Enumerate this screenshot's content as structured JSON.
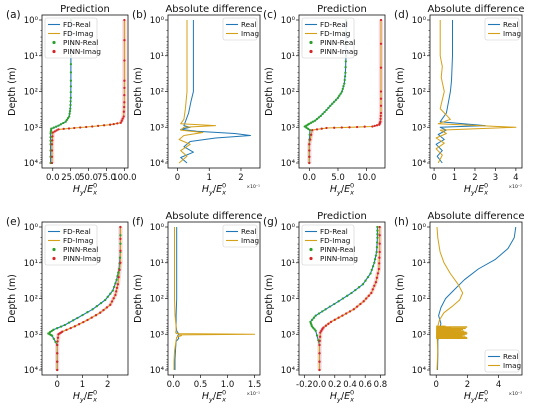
{
  "figure": {
    "ylabel": "Depth (m)",
    "xlabel": "H_y/E_x^0",
    "colors": {
      "real": "#1f77b4",
      "imag": "#d4a017",
      "pinn_real": "#2ca02c",
      "pinn_imag": "#d62728",
      "band": "#f4b6c8"
    }
  },
  "chart_data": [
    {
      "panel": "(a)",
      "type": "line",
      "title": "Prediction",
      "xticks": [
        "0.0",
        "25.0",
        "50.0",
        "75.0",
        "100.0"
      ],
      "xlim": [
        -15,
        105
      ],
      "y_scale": "log",
      "ylim": [
        1,
        10000
      ],
      "y_inverted": true,
      "legend": [
        "FD-Real",
        "FD-Imag",
        "PINN-Real",
        "PINN-Imag"
      ],
      "legend_position": "top-left",
      "series": [
        {
          "name": "FD-Real",
          "style": "line",
          "x": [
            25.3,
            25.3,
            25.3,
            25.2,
            24.5,
            23,
            18,
            8,
            -2,
            -3,
            -3,
            -3
          ],
          "y": [
            1,
            10,
            50,
            150,
            300,
            500,
            700,
            900,
            1100,
            1500,
            3000,
            10000
          ]
        },
        {
          "name": "FD-Imag",
          "style": "line",
          "x": [
            100,
            100,
            99.8,
            99,
            95,
            80,
            55,
            30,
            8,
            0,
            -1,
            -1
          ],
          "y": [
            1,
            50,
            200,
            500,
            750,
            850,
            950,
            1050,
            1150,
            1400,
            3000,
            10000
          ]
        },
        {
          "name": "PINN-Real",
          "style": "dots",
          "x": [
            25.3,
            25.3,
            25.3,
            25.2,
            24.5,
            23,
            18,
            8,
            -2,
            -3,
            -3,
            -3
          ],
          "y": [
            1,
            10,
            50,
            150,
            300,
            500,
            700,
            900,
            1100,
            1500,
            3000,
            10000
          ]
        },
        {
          "name": "PINN-Imag",
          "style": "dots",
          "x": [
            100,
            100,
            99.8,
            99,
            95,
            80,
            55,
            30,
            8,
            0,
            -1,
            -1
          ],
          "y": [
            1,
            50,
            200,
            500,
            750,
            850,
            950,
            1050,
            1150,
            1400,
            3000,
            10000
          ]
        }
      ]
    },
    {
      "panel": "(b)",
      "type": "line",
      "title": "Absolute difference",
      "xticks": [
        "0",
        "1",
        "2"
      ],
      "xlim": [
        -0.3,
        2.6
      ],
      "x_multiplier": "×10⁻¹",
      "y_scale": "log",
      "ylim": [
        1,
        10000
      ],
      "y_inverted": true,
      "legend": [
        "Real",
        "Imag"
      ],
      "legend_position": "top-right",
      "series": [
        {
          "name": "Real",
          "style": "line",
          "x": [
            0.5,
            0.5,
            0.42,
            0.35,
            0.25,
            0.2,
            0.4,
            0.1,
            0.6,
            1.8,
            2.3,
            1.2,
            0.4,
            0.2,
            0.5,
            0.1,
            0.3
          ],
          "y": [
            1,
            100,
            200,
            400,
            700,
            900,
            1000,
            1150,
            1300,
            1500,
            1700,
            2000,
            2500,
            3500,
            5000,
            7000,
            10000
          ]
        },
        {
          "name": "Imag",
          "style": "line",
          "x": [
            0.3,
            0.3,
            0.25,
            0.2,
            0.1,
            1.2,
            0.2,
            0.1,
            0.8,
            0.2,
            0.05,
            0.4,
            0.1,
            0.3,
            0.05
          ],
          "y": [
            1,
            100,
            300,
            600,
            800,
            900,
            1000,
            1200,
            1400,
            1700,
            2200,
            3000,
            4500,
            6500,
            10000
          ]
        }
      ]
    },
    {
      "panel": "(c)",
      "type": "line",
      "title": "Prediction",
      "xticks": [
        "0.0",
        "5.0",
        "10.0"
      ],
      "xlim": [
        -1.8,
        13.2
      ],
      "y_scale": "log",
      "ylim": [
        1,
        10000
      ],
      "y_inverted": true,
      "legend": [
        "FD-Real",
        "FD-Imag",
        "PINN-Real",
        "PINN-Imag"
      ],
      "legend_position": "top-left",
      "series": [
        {
          "name": "FD-Real",
          "style": "line",
          "x": [
            6.4,
            6.4,
            6.3,
            6.1,
            5.7,
            5,
            4,
            3,
            2,
            1,
            0,
            -0.8,
            0.1,
            0,
            0
          ],
          "y": [
            1,
            10,
            30,
            60,
            100,
            150,
            220,
            330,
            480,
            650,
            800,
            950,
            1200,
            3000,
            10000
          ]
        },
        {
          "name": "FD-Imag",
          "style": "line",
          "x": [
            12.5,
            12.5,
            12.5,
            12.4,
            12.2,
            11,
            7,
            3,
            0.5,
            0,
            0
          ],
          "y": [
            1,
            100,
            400,
            700,
            850,
            950,
            1000,
            1050,
            1200,
            3000,
            10000
          ]
        },
        {
          "name": "PINN-Real",
          "style": "dots",
          "x": [
            6.4,
            6.4,
            6.3,
            6.1,
            5.7,
            5,
            4,
            3,
            2,
            1,
            0,
            -0.8,
            0.1,
            0,
            0
          ],
          "y": [
            1,
            10,
            30,
            60,
            100,
            150,
            220,
            330,
            480,
            650,
            800,
            950,
            1200,
            3000,
            10000
          ]
        },
        {
          "name": "PINN-Imag",
          "style": "dots",
          "x": [
            12.5,
            12.5,
            12.5,
            12.4,
            12.2,
            11,
            7,
            3,
            0.5,
            0,
            0
          ],
          "y": [
            1,
            100,
            400,
            700,
            850,
            950,
            1000,
            1050,
            1200,
            3000,
            10000
          ]
        }
      ]
    },
    {
      "panel": "(d)",
      "type": "line",
      "title": "Absolute difference",
      "xticks": [
        "0",
        "1",
        "2",
        "3",
        "4"
      ],
      "xlim": [
        -0.2,
        4.3
      ],
      "x_multiplier": "×10⁻²",
      "y_scale": "log",
      "ylim": [
        1,
        10000
      ],
      "y_inverted": true,
      "legend": [
        "Real",
        "Imag"
      ],
      "legend_position": "top-right",
      "series": [
        {
          "name": "Real",
          "style": "line",
          "x": [
            0.9,
            0.9,
            0.85,
            0.8,
            0.7,
            0.6,
            0.3,
            2.5,
            0.3,
            0.6,
            0.2,
            0.5,
            0.1,
            0.4,
            0.15,
            0.4
          ],
          "y": [
            1,
            10,
            50,
            100,
            200,
            400,
            700,
            900,
            1000,
            1200,
            1600,
            2200,
            3000,
            4500,
            6500,
            10000
          ]
        },
        {
          "name": "Imag",
          "style": "line",
          "x": [
            0.3,
            0.3,
            0.3,
            0.4,
            0.35,
            0.5,
            0.3,
            0.8,
            0.2,
            4,
            0.3,
            0.6,
            0.1,
            0.5,
            0.1,
            0.4,
            0.2
          ],
          "y": [
            1,
            3,
            10,
            20,
            40,
            100,
            300,
            600,
            800,
            1000,
            1200,
            1500,
            2000,
            2800,
            4000,
            6000,
            10000
          ]
        }
      ]
    },
    {
      "panel": "(e)",
      "type": "line",
      "title": "",
      "xticks": [
        "0",
        "1",
        "2"
      ],
      "xlim": [
        -0.6,
        2.8
      ],
      "y_scale": "log",
      "ylim": [
        1,
        10000
      ],
      "y_inverted": true,
      "legend": [
        "FD-Real",
        "FD-Imag",
        "PINN-Real",
        "PINN-Imag"
      ],
      "legend_position": "top-left",
      "series": [
        {
          "name": "FD-Real",
          "style": "line",
          "x": [
            2.5,
            2.5,
            2.45,
            2.35,
            2.2,
            1.9,
            1.4,
            0.8,
            0.3,
            -0.15,
            -0.35,
            -0.2,
            0,
            0
          ],
          "y": [
            1,
            5,
            15,
            30,
            60,
            110,
            200,
            350,
            550,
            750,
            950,
            1100,
            2000,
            10000
          ]
        },
        {
          "name": "FD-Imag",
          "style": "line",
          "x": [
            2.5,
            2.5,
            2.4,
            2.3,
            2.1,
            1.7,
            1.2,
            0.7,
            0.2,
            0.05,
            0,
            0
          ],
          "y": [
            1,
            10,
            40,
            80,
            150,
            250,
            400,
            600,
            850,
            1000,
            2000,
            10000
          ]
        },
        {
          "name": "PINN-Real",
          "style": "dots",
          "x": [
            2.5,
            2.5,
            2.45,
            2.35,
            2.2,
            1.9,
            1.4,
            0.8,
            0.3,
            -0.15,
            -0.35,
            -0.2,
            0,
            0
          ],
          "y": [
            1,
            5,
            15,
            30,
            60,
            110,
            200,
            350,
            550,
            750,
            950,
            1100,
            2000,
            10000
          ]
        },
        {
          "name": "PINN-Imag",
          "style": "dots",
          "x": [
            2.5,
            2.5,
            2.4,
            2.3,
            2.1,
            1.7,
            1.2,
            0.7,
            0.2,
            0.05,
            0,
            0
          ],
          "y": [
            1,
            10,
            40,
            80,
            150,
            250,
            400,
            600,
            850,
            1000,
            2000,
            10000
          ]
        }
      ]
    },
    {
      "panel": "(f)",
      "type": "line",
      "title": "Absolute difference",
      "xticks": [
        "0.0",
        "0.5",
        "1.0",
        "1.5"
      ],
      "xlim": [
        -0.1,
        1.6
      ],
      "x_multiplier": "×10⁻¹",
      "y_scale": "log",
      "ylim": [
        1,
        10000
      ],
      "y_inverted": true,
      "legend": [
        "Real",
        "Imag"
      ],
      "legend_position": "top-right",
      "series": [
        {
          "name": "Real",
          "style": "line",
          "x": [
            0.06,
            0.06,
            0.06,
            0.05,
            0.05,
            0.06,
            0.1,
            0.08,
            0.1,
            0.05,
            0.04,
            0.03,
            0.03
          ],
          "y": [
            1,
            10,
            100,
            300,
            600,
            800,
            1000,
            1100,
            1300,
            1600,
            2500,
            5000,
            10000
          ]
        },
        {
          "name": "Imag",
          "style": "line",
          "x": [
            0.02,
            0.02,
            0.02,
            0.03,
            0.05,
            0.05,
            0.04,
            0.06,
            0.05,
            1.5,
            0.1,
            0.15,
            0.06,
            0.05,
            0.02,
            0.01,
            0.01
          ],
          "y": [
            1,
            10,
            100,
            300,
            600,
            800,
            880,
            920,
            960,
            1000,
            1040,
            1100,
            1200,
            1500,
            3000,
            6000,
            10000
          ]
        }
      ]
    },
    {
      "panel": "(g)",
      "type": "line",
      "title": "Prediction",
      "xticks": [
        "-0.2",
        "0.0",
        "0.2",
        "0.4",
        "0.6",
        "0.8"
      ],
      "xlim": [
        -0.27,
        0.86
      ],
      "y_scale": "log",
      "ylim": [
        1,
        10000
      ],
      "y_inverted": true,
      "legend": [
        "FD-Real",
        "FD-Imag",
        "PINN-Real",
        "PINN-Imag"
      ],
      "legend_position": "top-left",
      "series": [
        {
          "name": "FD-Real",
          "style": "line",
          "x": [
            0.76,
            0.76,
            0.75,
            0.72,
            0.67,
            0.57,
            0.42,
            0.25,
            0.08,
            -0.05,
            -0.12,
            -0.1,
            -0.05,
            0,
            0
          ],
          "y": [
            1,
            2,
            5,
            10,
            20,
            40,
            70,
            120,
            200,
            300,
            450,
            600,
            800,
            2000,
            10000
          ]
        },
        {
          "name": "FD-Imag",
          "style": "line",
          "x": [
            0.79,
            0.79,
            0.78,
            0.74,
            0.68,
            0.58,
            0.45,
            0.3,
            0.15,
            0.05,
            0.01,
            0,
            0
          ],
          "y": [
            1,
            5,
            15,
            35,
            70,
            120,
            200,
            300,
            450,
            650,
            900,
            2000,
            10000
          ]
        },
        {
          "name": "PINN-Real",
          "style": "dots",
          "x": [
            0.76,
            0.76,
            0.75,
            0.72,
            0.67,
            0.57,
            0.42,
            0.25,
            0.08,
            -0.05,
            -0.12,
            -0.1,
            -0.05,
            0,
            0
          ],
          "y": [
            1,
            2,
            5,
            10,
            20,
            40,
            70,
            120,
            200,
            300,
            450,
            600,
            800,
            2000,
            10000
          ]
        },
        {
          "name": "PINN-Imag",
          "style": "dots",
          "x": [
            0.79,
            0.79,
            0.78,
            0.74,
            0.68,
            0.58,
            0.45,
            0.3,
            0.15,
            0.05,
            0.01,
            0,
            0
          ],
          "y": [
            1,
            5,
            15,
            35,
            70,
            120,
            200,
            300,
            450,
            650,
            900,
            2000,
            10000
          ]
        }
      ]
    },
    {
      "panel": "(h)",
      "type": "line",
      "title": "Absolute difference",
      "xticks": [
        "0",
        "2",
        "4"
      ],
      "xlim": [
        -0.4,
        5.5
      ],
      "x_multiplier": "×10⁻³",
      "y_scale": "log",
      "ylim": [
        1,
        10000
      ],
      "y_inverted": true,
      "legend": [
        "Real",
        "Imag"
      ],
      "legend_position": "bottom-right",
      "series": [
        {
          "name": "Real",
          "style": "line",
          "x": [
            5.1,
            5,
            4.6,
            3.8,
            2.7,
            1.8,
            1.1,
            0.6,
            0.3,
            0.15,
            0.3,
            0.2,
            0.1,
            0.1,
            0.08
          ],
          "y": [
            1,
            2,
            4,
            8,
            15,
            30,
            60,
            100,
            180,
            300,
            500,
            800,
            1500,
            4000,
            10000
          ]
        },
        {
          "name": "Imag",
          "style": "line",
          "x": [
            0.05,
            0.1,
            0.25,
            0.5,
            0.9,
            1.4,
            1.7,
            1.5,
            1,
            0.5,
            0.2,
            0.1,
            0.05,
            0.1,
            0.05
          ],
          "y": [
            1,
            2,
            5,
            10,
            20,
            40,
            70,
            110,
            170,
            250,
            400,
            600,
            1000,
            3000,
            10000
          ]
        }
      ]
    }
  ]
}
